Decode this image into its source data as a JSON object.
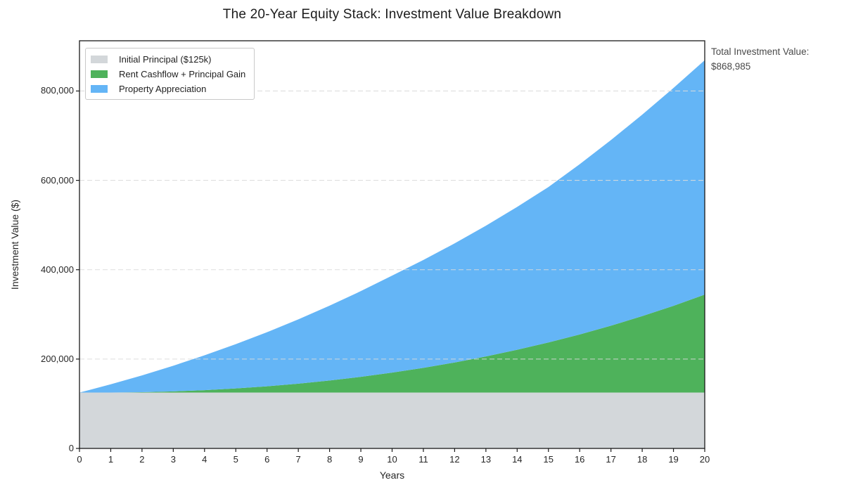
{
  "title": "The 20-Year Equity Stack: Investment Value Breakdown",
  "annotation": {
    "line1": "Total Investment Value:",
    "line2": "$868,985"
  },
  "chart_data": {
    "type": "area",
    "stacked": true,
    "title": "The 20-Year Equity Stack: Investment Value Breakdown",
    "xlabel": "Years",
    "ylabel": "Investment Value ($)",
    "x": [
      0,
      1,
      2,
      3,
      4,
      5,
      6,
      7,
      8,
      9,
      10,
      11,
      12,
      13,
      14,
      15,
      16,
      17,
      18,
      19,
      20
    ],
    "series": [
      {
        "name": "Initial Principal ($125k)",
        "color": "#D3D7DA",
        "values": [
          125000,
          125000,
          125000,
          125000,
          125000,
          125000,
          125000,
          125000,
          125000,
          125000,
          125000,
          125000,
          125000,
          125000,
          125000,
          125000,
          125000,
          125000,
          125000,
          125000,
          125000
        ]
      },
      {
        "name": "Rent Cashflow + Principal Gain",
        "color": "#4EB25B",
        "values": [
          0,
          0,
          885,
          2692,
          5459,
          9228,
          14039,
          19938,
          26969,
          35180,
          44621,
          55344,
          67401,
          80850,
          95749,
          112158,
          130141,
          149765,
          171097,
          194211,
          219402
        ]
      },
      {
        "name": "Property Appreciation",
        "color": "#64B5F6",
        "values": [
          0,
          18466,
          37589,
          57393,
          77901,
          99141,
          121136,
          143914,
          167503,
          191931,
          217230,
          241429,
          266561,
          292658,
          319756,
          347890,
          381097,
          415414,
          450882,
          487542,
          524583
        ]
      }
    ],
    "total_final_value": 868985,
    "xlim": [
      0,
      20
    ],
    "ylim": [
      0,
      912434
    ],
    "y_ticks": [
      0,
      200000,
      400000,
      600000,
      800000
    ],
    "y_tick_labels": [
      "0",
      "200,000",
      "400,000",
      "600,000",
      "800,000"
    ],
    "x_tick_labels": [
      "0",
      "1",
      "2",
      "3",
      "4",
      "5",
      "6",
      "7",
      "8",
      "9",
      "10",
      "11",
      "12",
      "13",
      "14",
      "15",
      "16",
      "17",
      "18",
      "19",
      "20"
    ],
    "grid": "horizontal-dashed",
    "legend_position": "upper-left",
    "colors": {
      "gridline": "#DBDBDB",
      "spine": "#1A1A1A",
      "tick_text": "#262626",
      "annotation_text": "#4A4A4A"
    }
  }
}
